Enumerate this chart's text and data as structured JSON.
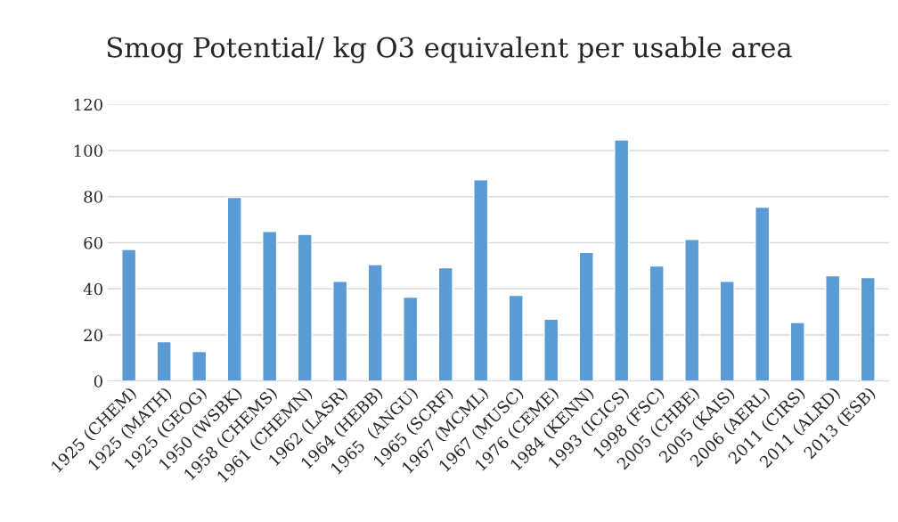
{
  "chart_data": {
    "type": "bar",
    "title": "Smog Potential/ kg O3 equivalent per usable area",
    "categories": [
      "1925 (CHEM)",
      "1925 (MATH)",
      "1925 (GEOG)",
      "1950 (WSBK)",
      "1958 (CHEMS)",
      "1961 (CHEMN)",
      "1962 (LASR)",
      "1964 (HEBB)",
      "1965  (ANGU)",
      "1965 (SCRF)",
      "1967 (MCML)",
      "1967 (MUSC)",
      "1976 (CEME)",
      "1984 (KENN)",
      "1993 (ICICS)",
      "1998 (FSC)",
      "2005 (CHBE)",
      "2005 (KAIS)",
      "2006 (AERL)",
      "2011 (CIRS)",
      "2011 (ALRD)",
      "2013 (ESB)"
    ],
    "values": [
      57.1,
      17.1,
      12.8,
      79.7,
      64.9,
      63.6,
      43.3,
      50.5,
      36.4,
      49.2,
      87.3,
      37.2,
      26.8,
      55.8,
      104.6,
      49.9,
      61.4,
      43.3,
      75.4,
      25.4,
      45.7,
      44.9
    ],
    "color": "#5b9bd5",
    "ylim": [
      0,
      120
    ],
    "yticks": [
      0,
      20,
      40,
      60,
      80,
      100,
      120
    ],
    "grid": "y"
  }
}
